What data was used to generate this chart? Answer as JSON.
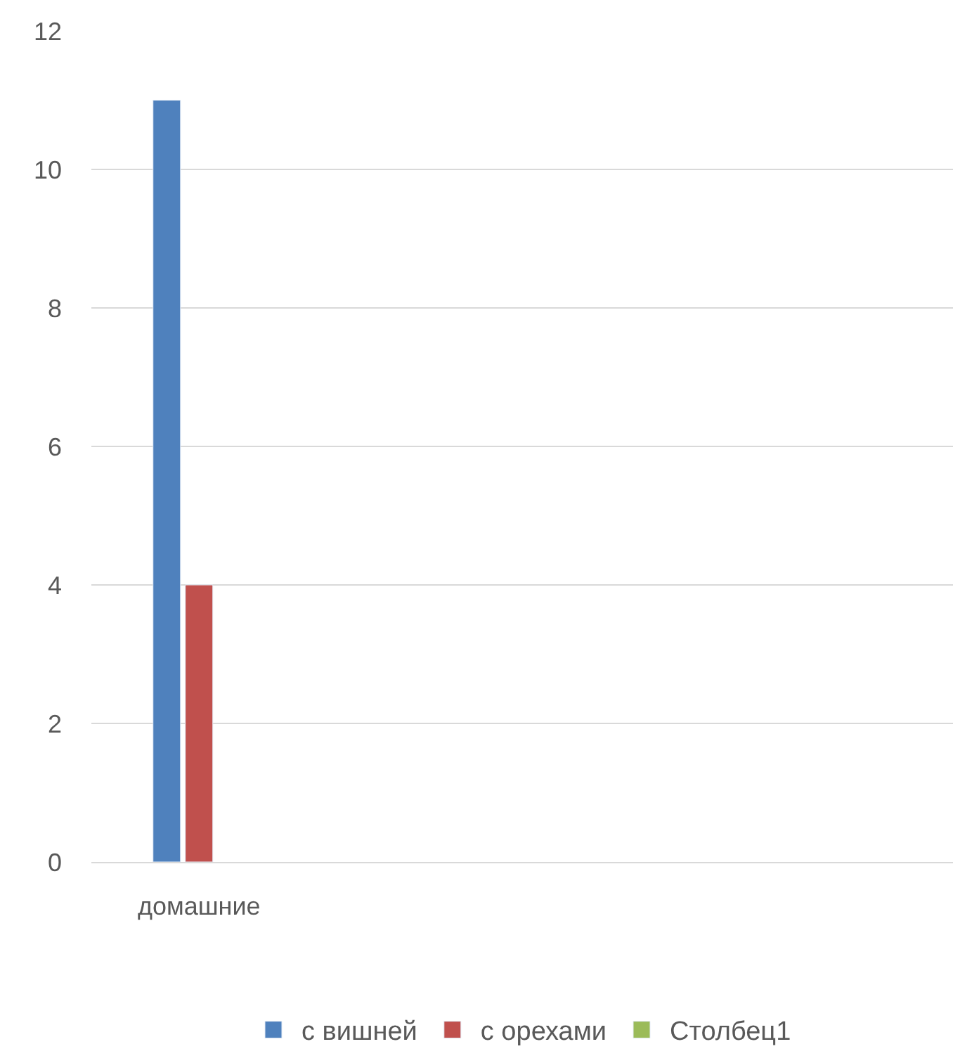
{
  "chart_data": {
    "type": "bar",
    "categories": [
      "домашние",
      null,
      null,
      null
    ],
    "series": [
      {
        "name": "с вишней",
        "color": "#4f81bd",
        "values": [
          11,
          null,
          null,
          null
        ]
      },
      {
        "name": "с орехами",
        "color": "#c0504d",
        "values": [
          4,
          null,
          null,
          null
        ]
      },
      {
        "name": "Столбец1",
        "color": "#9bbb59",
        "values": [
          null,
          null,
          null,
          null
        ]
      }
    ],
    "ylim": [
      0,
      12
    ],
    "yticks": [
      0,
      2,
      4,
      6,
      8,
      10,
      12
    ],
    "grid": "y",
    "legend": "bottom"
  }
}
